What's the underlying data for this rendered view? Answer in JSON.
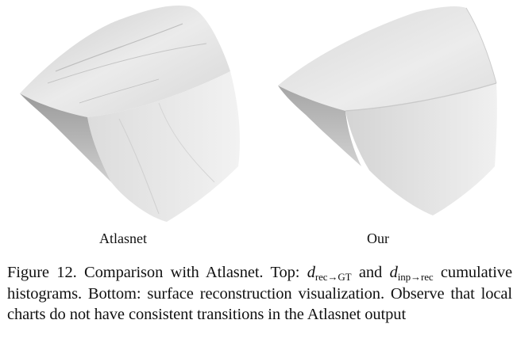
{
  "figure": {
    "panels": [
      {
        "id": "left",
        "label": "Atlasnet"
      },
      {
        "id": "right",
        "label": "Our"
      }
    ],
    "caption": {
      "prefix": "Figure 12. Comparison with Atlasnet. Top: ",
      "math1_var": "d",
      "math1_sub": "rec→GT",
      "middle": " and ",
      "math2_var": "d",
      "math2_sub": "inp→rec",
      "suffix": " cumulative histograms. Bottom: surface reconstruction visualization. Observe that local charts do not have consistent transitions in the Atlasnet output"
    }
  }
}
